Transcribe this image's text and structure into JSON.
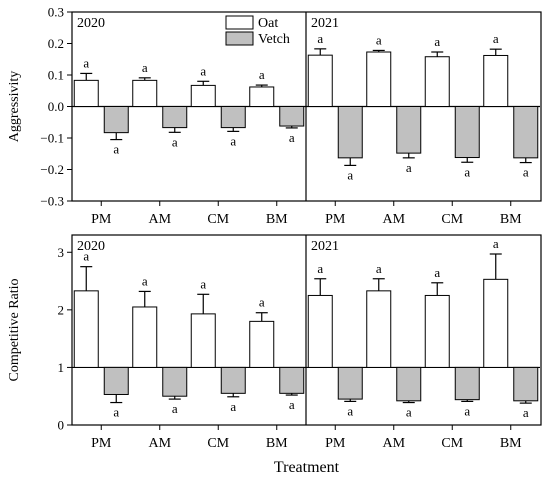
{
  "chart_data": {
    "type": "bar",
    "xlabel": "Treatment",
    "categories": [
      "PM",
      "AM",
      "CM",
      "BM"
    ],
    "legend": {
      "placement": "top-center",
      "entries": [
        {
          "name": "Oat",
          "fill": "#ffffff"
        },
        {
          "name": "Vetch",
          "fill": "#c0c0c0"
        }
      ]
    },
    "panels": [
      {
        "ylabel": "Aggressivity",
        "ylim": [
          -0.3,
          0.3
        ],
        "yticks": [
          -0.3,
          -0.2,
          -0.1,
          0.0,
          0.1,
          0.2,
          0.3
        ],
        "ytick_labels": [
          "−0.3",
          "−0.2",
          "−0.1",
          "0.0",
          "0.1",
          "0.2",
          "0.3"
        ],
        "baseline": 0,
        "subplots": [
          {
            "label": "2020",
            "series": [
              {
                "name": "Oat",
                "values": [
                  0.083,
                  0.083,
                  0.067,
                  0.062
                ],
                "errors": [
                  0.022,
                  0.008,
                  0.013,
                  0.006
                ],
                "letters": [
                  "a",
                  "a",
                  "a",
                  "a"
                ]
              },
              {
                "name": "Vetch",
                "values": [
                  -0.083,
                  -0.067,
                  -0.067,
                  -0.062
                ],
                "errors": [
                  0.022,
                  0.015,
                  0.012,
                  0.006
                ],
                "letters": [
                  "a",
                  "a",
                  "a",
                  "a"
                ]
              }
            ]
          },
          {
            "label": "2021",
            "series": [
              {
                "name": "Oat",
                "values": [
                  0.163,
                  0.173,
                  0.158,
                  0.162
                ],
                "errors": [
                  0.02,
                  0.005,
                  0.015,
                  0.02
                ],
                "letters": [
                  "a",
                  "a",
                  "a",
                  "a"
                ]
              },
              {
                "name": "Vetch",
                "values": [
                  -0.163,
                  -0.148,
                  -0.162,
                  -0.163
                ],
                "errors": [
                  0.024,
                  0.015,
                  0.015,
                  0.015
                ],
                "letters": [
                  "a",
                  "a",
                  "a",
                  "a"
                ]
              }
            ]
          }
        ]
      },
      {
        "ylabel": "Competitive Ratio",
        "ylim": [
          0,
          3.3
        ],
        "yticks": [
          0,
          1,
          2,
          3
        ],
        "ytick_labels": [
          "0",
          "1",
          "2",
          "3"
        ],
        "baseline": 1,
        "subplots": [
          {
            "label": "2020",
            "series": [
              {
                "name": "Oat",
                "values": [
                  2.33,
                  2.05,
                  1.93,
                  1.8
                ],
                "errors": [
                  0.42,
                  0.27,
                  0.34,
                  0.15
                ],
                "letters": [
                  "a",
                  "a",
                  "a",
                  "a"
                ]
              },
              {
                "name": "Vetch",
                "values": [
                  0.53,
                  0.5,
                  0.55,
                  0.55
                ],
                "errors": [
                  0.14,
                  0.05,
                  0.06,
                  0.03
                ],
                "letters": [
                  "a",
                  "a",
                  "a",
                  "a"
                ]
              }
            ]
          },
          {
            "label": "2021",
            "series": [
              {
                "name": "Oat",
                "values": [
                  2.25,
                  2.33,
                  2.25,
                  2.53
                ],
                "errors": [
                  0.29,
                  0.21,
                  0.22,
                  0.44
                ],
                "letters": [
                  "a",
                  "a",
                  "a",
                  "a"
                ]
              },
              {
                "name": "Vetch",
                "values": [
                  0.45,
                  0.42,
                  0.44,
                  0.42
                ],
                "errors": [
                  0.04,
                  0.03,
                  0.03,
                  0.04
                ],
                "letters": [
                  "a",
                  "a",
                  "a",
                  "a"
                ]
              }
            ]
          }
        ]
      }
    ]
  }
}
